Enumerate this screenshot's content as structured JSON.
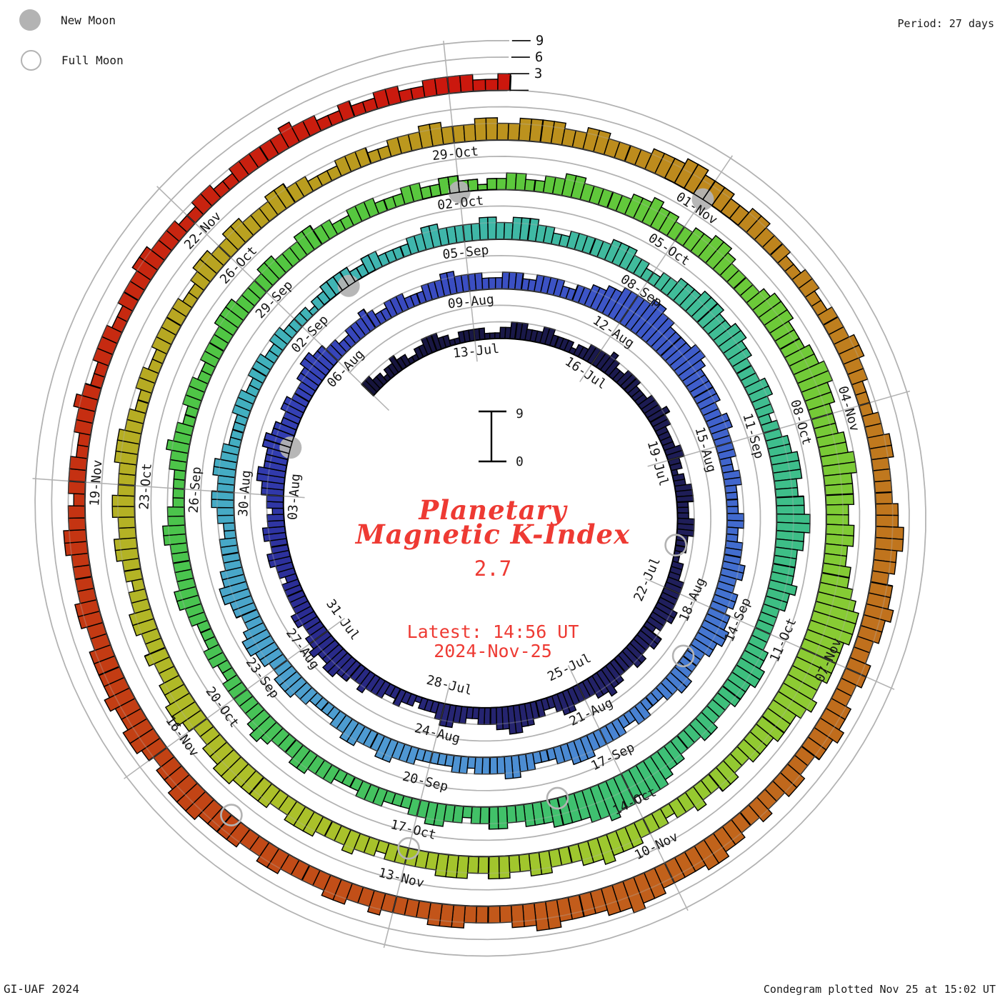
{
  "header": {
    "period": "Period: 27 days"
  },
  "legend": {
    "new_moon": "New Moon",
    "full_moon": "Full Moon"
  },
  "footer": {
    "left": "GI-UAF 2024",
    "right": "Condegram plotted Nov 25 at 15:02 UT"
  },
  "center": {
    "title_line1": "Planetary",
    "title_line2": "Magnetic K-Index",
    "current_value": "2.7",
    "latest_line1": "Latest: 14:56 UT",
    "latest_line2": "2024-Nov-25"
  },
  "scale": {
    "max": "9",
    "min": "0"
  },
  "chart_data": {
    "type": "bar",
    "subtype": "polar-spiral-condegram",
    "title": "Planetary Magnetic K-Index",
    "period_days": 27,
    "k_range": [
      0,
      9
    ],
    "grid_k": [
      3,
      6,
      9
    ],
    "ruler_labels": [
      "3",
      "6",
      "9"
    ],
    "start_date": "2024-07-10T00:00Z",
    "end_date": "2024-11-25T15:00Z",
    "latest_value": 2.7,
    "date_labels": [
      {
        "t": 0,
        "text": "13-Jul"
      },
      {
        "t": 3,
        "text": "16-Jul"
      },
      {
        "t": 6,
        "text": "19-Jul"
      },
      {
        "t": 9,
        "text": "22-Jul"
      },
      {
        "t": 12,
        "text": "25-Jul"
      },
      {
        "t": 15,
        "text": "28-Jul"
      },
      {
        "t": 18,
        "text": "31-Jul"
      },
      {
        "t": 21,
        "text": "03-Aug"
      },
      {
        "t": 24,
        "text": "06-Aug"
      },
      {
        "t": 27,
        "text": "09-Aug"
      },
      {
        "t": 30,
        "text": "12-Aug"
      },
      {
        "t": 33,
        "text": "15-Aug"
      },
      {
        "t": 36,
        "text": "18-Aug"
      },
      {
        "t": 39,
        "text": "21-Aug"
      },
      {
        "t": 42,
        "text": "24-Aug"
      },
      {
        "t": 45,
        "text": "27-Aug"
      },
      {
        "t": 48,
        "text": "30-Aug"
      },
      {
        "t": 51,
        "text": "02-Sep"
      },
      {
        "t": 54,
        "text": "05-Sep"
      },
      {
        "t": 57,
        "text": "08-Sep"
      },
      {
        "t": 60,
        "text": "11-Sep"
      },
      {
        "t": 63,
        "text": "14-Sep"
      },
      {
        "t": 66,
        "text": "17-Sep"
      },
      {
        "t": 69,
        "text": "20-Sep"
      },
      {
        "t": 72,
        "text": "23-Sep"
      },
      {
        "t": 75,
        "text": "26-Sep"
      },
      {
        "t": 78,
        "text": "29-Sep"
      },
      {
        "t": 81,
        "text": "02-Oct"
      },
      {
        "t": 84,
        "text": "05-Oct"
      },
      {
        "t": 87,
        "text": "08-Oct"
      },
      {
        "t": 90,
        "text": "11-Oct"
      },
      {
        "t": 93,
        "text": "14-Oct"
      },
      {
        "t": 96,
        "text": "17-Oct"
      },
      {
        "t": 99,
        "text": "20-Oct"
      },
      {
        "t": 102,
        "text": "23-Oct"
      },
      {
        "t": 105,
        "text": "26-Oct"
      },
      {
        "t": 108,
        "text": "29-Oct"
      },
      {
        "t": 111,
        "text": "01-Nov"
      },
      {
        "t": 114,
        "text": "04-Nov"
      },
      {
        "t": 117,
        "text": "07-Nov"
      },
      {
        "t": 120,
        "text": "10-Nov"
      },
      {
        "t": 123,
        "text": "13-Nov"
      },
      {
        "t": 126,
        "text": "16-Nov"
      },
      {
        "t": 129,
        "text": "19-Nov"
      },
      {
        "t": 132,
        "text": "22-Nov"
      }
    ],
    "moons": {
      "new": [
        {
          "date": "2024-08-04",
          "t": 22
        },
        {
          "date": "2024-09-03",
          "t": 52
        },
        {
          "date": "2024-10-02",
          "t": 81
        },
        {
          "date": "2024-11-01",
          "t": 111
        }
      ],
      "full": [
        {
          "date": "2024-07-21",
          "t": 8
        },
        {
          "date": "2024-08-19",
          "t": 37
        },
        {
          "date": "2024-09-18",
          "t": 67
        },
        {
          "date": "2024-10-17",
          "t": 96
        },
        {
          "date": "2024-11-15",
          "t": 125
        }
      ]
    },
    "color_stops": [
      [
        -3,
        "#16143c"
      ],
      [
        3,
        "#1b1a4e"
      ],
      [
        9,
        "#201f5c"
      ],
      [
        15,
        "#262574"
      ],
      [
        19,
        "#2b2d96"
      ],
      [
        22,
        "#333eb2"
      ],
      [
        26,
        "#3a4bc0"
      ],
      [
        30,
        "#3d57c8"
      ],
      [
        34,
        "#4168ce"
      ],
      [
        38,
        "#4780d2"
      ],
      [
        42,
        "#4f96d3"
      ],
      [
        46,
        "#4aa5cb"
      ],
      [
        50,
        "#40b1bd"
      ],
      [
        54,
        "#3fb7a8"
      ],
      [
        58,
        "#40bd96"
      ],
      [
        62,
        "#3dbe85"
      ],
      [
        66,
        "#3ec073"
      ],
      [
        70,
        "#45c25d"
      ],
      [
        74,
        "#4ac44d"
      ],
      [
        78,
        "#52c641"
      ],
      [
        82,
        "#5dc83c"
      ],
      [
        86,
        "#6fca38"
      ],
      [
        90,
        "#8bcb33"
      ],
      [
        94,
        "#9fc72e"
      ],
      [
        98,
        "#adbf29"
      ],
      [
        102,
        "#b5b024"
      ],
      [
        106,
        "#ba9e1f"
      ],
      [
        110,
        "#bd8c1d"
      ],
      [
        114,
        "#c07b1e"
      ],
      [
        118,
        "#c06a1c"
      ],
      [
        122,
        "#c2571a"
      ],
      [
        126,
        "#c24114"
      ],
      [
        130,
        "#c62c11"
      ],
      [
        134,
        "#ca1b0e"
      ],
      [
        136,
        "#cc150d"
      ]
    ],
    "days": [
      {
        "date": "2024-07-10",
        "k": "33221223"
      },
      {
        "date": "2024-07-11",
        "k": "22112233"
      },
      {
        "date": "2024-07-12",
        "k": "32211222"
      },
      {
        "date": "2024-07-13",
        "k": "22111223"
      },
      {
        "date": "2024-07-14",
        "k": "33222332"
      },
      {
        "date": "2024-07-15",
        "k": "22212233"
      },
      {
        "date": "2024-07-16",
        "k": "33432233"
      },
      {
        "date": "2024-07-17",
        "k": "32223334"
      },
      {
        "date": "2024-07-18",
        "k": "33222233"
      },
      {
        "date": "2024-07-19",
        "k": "22122333"
      },
      {
        "date": "2024-07-20",
        "k": "22233322"
      },
      {
        "date": "2024-07-21",
        "k": "21122233"
      },
      {
        "date": "2024-07-22",
        "k": "33344332"
      },
      {
        "date": "2024-07-23",
        "k": "44334433"
      },
      {
        "date": "2024-07-24",
        "k": "34454433"
      },
      {
        "date": "2024-07-25",
        "k": "33443223"
      },
      {
        "date": "2024-07-26",
        "k": "34455443"
      },
      {
        "date": "2024-07-27",
        "k": "33223344"
      },
      {
        "date": "2024-07-28",
        "k": "32221223"
      },
      {
        "date": "2024-07-29",
        "k": "22333433"
      },
      {
        "date": "2024-07-30",
        "k": "44554454"
      },
      {
        "date": "2024-07-31",
        "k": "43344333"
      },
      {
        "date": "2024-08-01",
        "k": "33233443"
      },
      {
        "date": "2024-08-02",
        "k": "34433233"
      },
      {
        "date": "2024-08-03",
        "k": "44554445"
      },
      {
        "date": "2024-08-04",
        "k": "54433443"
      },
      {
        "date": "2024-08-05",
        "k": "33445544"
      },
      {
        "date": "2024-08-06",
        "k": "33223334"
      },
      {
        "date": "2024-08-07",
        "k": "32233322"
      },
      {
        "date": "2024-08-08",
        "k": "23334433"
      },
      {
        "date": "2024-08-09",
        "k": "33222333"
      },
      {
        "date": "2024-08-10",
        "k": "22333322"
      },
      {
        "date": "2024-08-11",
        "k": "33445566"
      },
      {
        "date": "2024-08-12",
        "k": "66776655"
      },
      {
        "date": "2024-08-13",
        "k": "55665444"
      },
      {
        "date": "2024-08-14",
        "k": "44334433"
      },
      {
        "date": "2024-08-15",
        "k": "33223322"
      },
      {
        "date": "2024-08-16",
        "k": "22332233"
      },
      {
        "date": "2024-08-17",
        "k": "34433443"
      },
      {
        "date": "2024-08-18",
        "k": "44554433"
      },
      {
        "date": "2024-08-19",
        "k": "33443322"
      },
      {
        "date": "2024-08-20",
        "k": "23322333"
      },
      {
        "date": "2024-08-21",
        "k": "33444332"
      },
      {
        "date": "2024-08-22",
        "k": "22334433"
      },
      {
        "date": "2024-08-23",
        "k": "33233222"
      },
      {
        "date": "2024-08-24",
        "k": "22333443"
      },
      {
        "date": "2024-08-25",
        "k": "33443322"
      },
      {
        "date": "2024-08-26",
        "k": "22334443"
      },
      {
        "date": "2024-08-27",
        "k": "34455433"
      },
      {
        "date": "2024-08-28",
        "k": "44554433"
      },
      {
        "date": "2024-08-29",
        "k": "33223344"
      },
      {
        "date": "2024-08-30",
        "k": "33443322"
      },
      {
        "date": "2024-08-31",
        "k": "22333223"
      },
      {
        "date": "2024-09-01",
        "k": "33223322"
      },
      {
        "date": "2024-09-02",
        "k": "22122333"
      },
      {
        "date": "2024-09-03",
        "k": "32233222"
      },
      {
        "date": "2024-09-04",
        "k": "23344333"
      },
      {
        "date": "2024-09-05",
        "k": "33443344"
      },
      {
        "date": "2024-09-06",
        "k": "43322333"
      },
      {
        "date": "2024-09-07",
        "k": "33444332"
      },
      {
        "date": "2024-09-08",
        "k": "23344455"
      },
      {
        "date": "2024-09-09",
        "k": "54455443"
      },
      {
        "date": "2024-09-10",
        "k": "33443323"
      },
      {
        "date": "2024-09-11",
        "k": "34455544"
      },
      {
        "date": "2024-09-12",
        "k": "55665544"
      },
      {
        "date": "2024-09-13",
        "k": "44544333"
      },
      {
        "date": "2024-09-14",
        "k": "33445544"
      },
      {
        "date": "2024-09-15",
        "k": "43334433"
      },
      {
        "date": "2024-09-16",
        "k": "34456665"
      },
      {
        "date": "2024-09-17",
        "k": "66766555"
      },
      {
        "date": "2024-09-18",
        "k": "54443344"
      },
      {
        "date": "2024-09-19",
        "k": "33233443"
      },
      {
        "date": "2024-09-20",
        "k": "32223332"
      },
      {
        "date": "2024-09-21",
        "k": "22333443"
      },
      {
        "date": "2024-09-22",
        "k": "33454333"
      },
      {
        "date": "2024-09-23",
        "k": "33223322"
      },
      {
        "date": "2024-09-24",
        "k": "23344333"
      },
      {
        "date": "2024-09-25",
        "k": "33443322"
      },
      {
        "date": "2024-09-26",
        "k": "22334332"
      },
      {
        "date": "2024-09-27",
        "k": "23332233"
      },
      {
        "date": "2024-09-28",
        "k": "33444333"
      },
      {
        "date": "2024-09-29",
        "k": "34433344"
      },
      {
        "date": "2024-09-30",
        "k": "33223332"
      },
      {
        "date": "2024-10-01",
        "k": "22332233"
      },
      {
        "date": "2024-10-02",
        "k": "22122332"
      },
      {
        "date": "2024-10-03",
        "k": "23344333"
      },
      {
        "date": "2024-10-04",
        "k": "33445443"
      },
      {
        "date": "2024-10-05",
        "k": "34455433"
      },
      {
        "date": "2024-10-06",
        "k": "33455544"
      },
      {
        "date": "2024-10-07",
        "k": "45566554"
      },
      {
        "date": "2024-10-08",
        "k": "44556655"
      },
      {
        "date": "2024-10-09",
        "k": "54455445"
      },
      {
        "date": "2024-10-10",
        "k": "56788877"
      },
      {
        "date": "2024-10-11",
        "k": "77667655"
      },
      {
        "date": "2024-10-12",
        "k": "54443344"
      },
      {
        "date": "2024-10-13",
        "k": "33433233"
      },
      {
        "date": "2024-10-14",
        "k": "34445443"
      },
      {
        "date": "2024-10-15",
        "k": "33443344"
      },
      {
        "date": "2024-10-16",
        "k": "33444333"
      },
      {
        "date": "2024-10-17",
        "k": "33233433"
      },
      {
        "date": "2024-10-18",
        "k": "34443344"
      },
      {
        "date": "2024-10-19",
        "k": "44554433"
      },
      {
        "date": "2024-10-20",
        "k": "45544334"
      },
      {
        "date": "2024-10-21",
        "k": "33443323"
      },
      {
        "date": "2024-10-22",
        "k": "34433443"
      },
      {
        "date": "2024-10-23",
        "k": "33444332"
      },
      {
        "date": "2024-10-24",
        "k": "23322333"
      },
      {
        "date": "2024-10-25",
        "k": "33223443"
      },
      {
        "date": "2024-10-26",
        "k": "34433344"
      },
      {
        "date": "2024-10-27",
        "k": "33222333"
      },
      {
        "date": "2024-10-28",
        "k": "22333443"
      },
      {
        "date": "2024-10-29",
        "k": "33443344"
      },
      {
        "date": "2024-10-30",
        "k": "44334433"
      },
      {
        "date": "2024-10-31",
        "k": "33444554"
      },
      {
        "date": "2024-11-01",
        "k": "44334433"
      },
      {
        "date": "2024-11-02",
        "k": "32233223"
      },
      {
        "date": "2024-11-03",
        "k": "33443322"
      },
      {
        "date": "2024-11-04",
        "k": "23344333"
      },
      {
        "date": "2024-11-05",
        "k": "34455443"
      },
      {
        "date": "2024-11-06",
        "k": "44544334"
      },
      {
        "date": "2024-11-07",
        "k": "43344544"
      },
      {
        "date": "2024-11-08",
        "k": "33443343"
      },
      {
        "date": "2024-11-09",
        "k": "34455444"
      },
      {
        "date": "2024-11-10",
        "k": "45565544"
      },
      {
        "date": "2024-11-11",
        "k": "44554433"
      },
      {
        "date": "2024-11-12",
        "k": "33444333"
      },
      {
        "date": "2024-11-13",
        "k": "34334433"
      },
      {
        "date": "2024-11-14",
        "k": "33443344"
      },
      {
        "date": "2024-11-15",
        "k": "44555443"
      },
      {
        "date": "2024-11-16",
        "k": "45544544"
      },
      {
        "date": "2024-11-17",
        "k": "44334433"
      },
      {
        "date": "2024-11-18",
        "k": "33443323"
      },
      {
        "date": "2024-11-19",
        "k": "33223343"
      },
      {
        "date": "2024-11-20",
        "k": "22333223"
      },
      {
        "date": "2024-11-21",
        "k": "33443332"
      },
      {
        "date": "2024-11-22",
        "k": "23322333"
      },
      {
        "date": "2024-11-23",
        "k": "33433223"
      },
      {
        "date": "2024-11-24",
        "k": "22332233"
      },
      {
        "date": "2024-11-25",
        "k": "33223"
      }
    ]
  }
}
